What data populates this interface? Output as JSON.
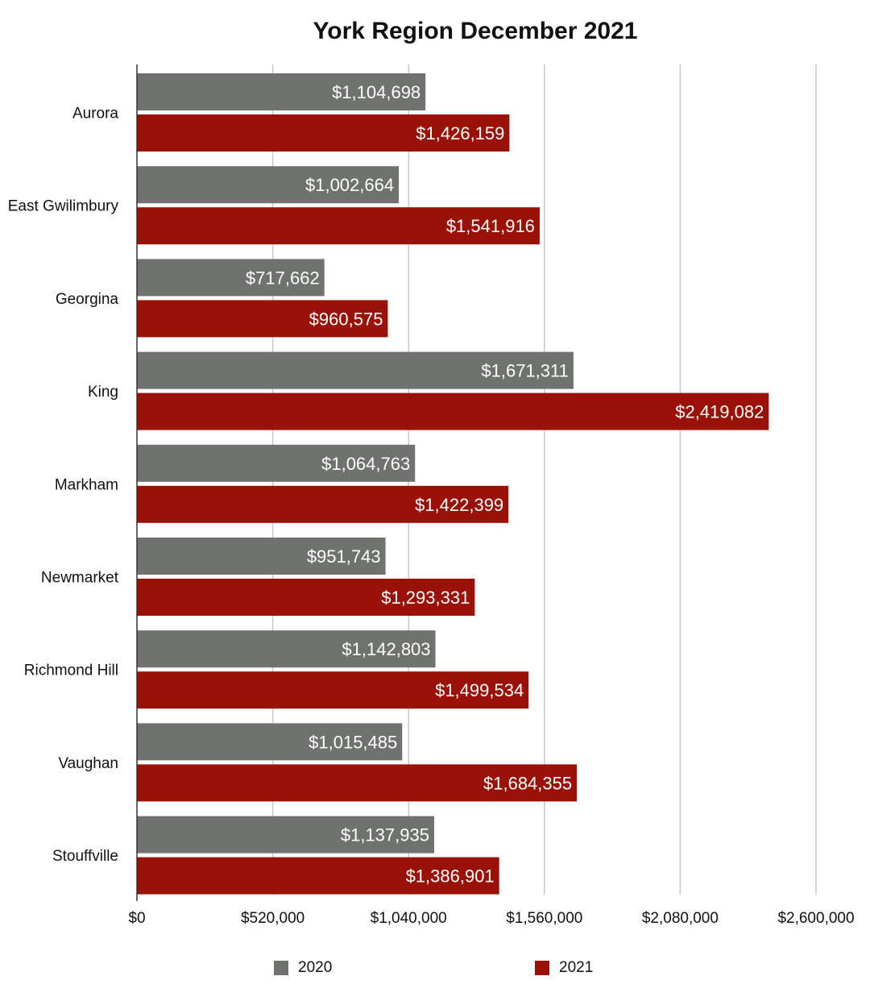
{
  "chart_data": {
    "type": "bar",
    "orientation": "horizontal",
    "title": "York Region December 2021",
    "categories": [
      "Aurora",
      "East Gwilimbury",
      "Georgina",
      "King",
      "Markham",
      "Newmarket",
      "Richmond Hill",
      "Vaughan",
      "Stouffville"
    ],
    "series": [
      {
        "name": "2020",
        "color": "#6f726f",
        "values": [
          1104698,
          1002664,
          717662,
          1671311,
          1064763,
          951743,
          1142803,
          1015485,
          1137935
        ],
        "labels": [
          "$1,104,698",
          "$1,002,664",
          "$717,662",
          "$1,671,311",
          "$1,064,763",
          "$951,743",
          "$1,142,803",
          "$1,015,485",
          "$1,137,935"
        ]
      },
      {
        "name": "2021",
        "color": "#9a1108",
        "values": [
          1426159,
          1541916,
          960575,
          2419082,
          1422399,
          1293331,
          1499534,
          1684355,
          1386901
        ],
        "labels": [
          "$1,426,159",
          "$1,541,916",
          "$960,575",
          "$2,419,082",
          "$1,422,399",
          "$1,293,331",
          "$1,499,534",
          "$1,684,355",
          "$1,386,901"
        ]
      }
    ],
    "xlim": [
      0,
      2600000
    ],
    "xticks": [
      0,
      520000,
      1040000,
      1560000,
      2080000,
      2600000
    ],
    "xtick_labels": [
      "$0",
      "$520,000",
      "$1,040,000",
      "$1,560,000",
      "$2,080,000",
      "$2,600,000"
    ],
    "grid": true,
    "legend_position": "bottom"
  }
}
